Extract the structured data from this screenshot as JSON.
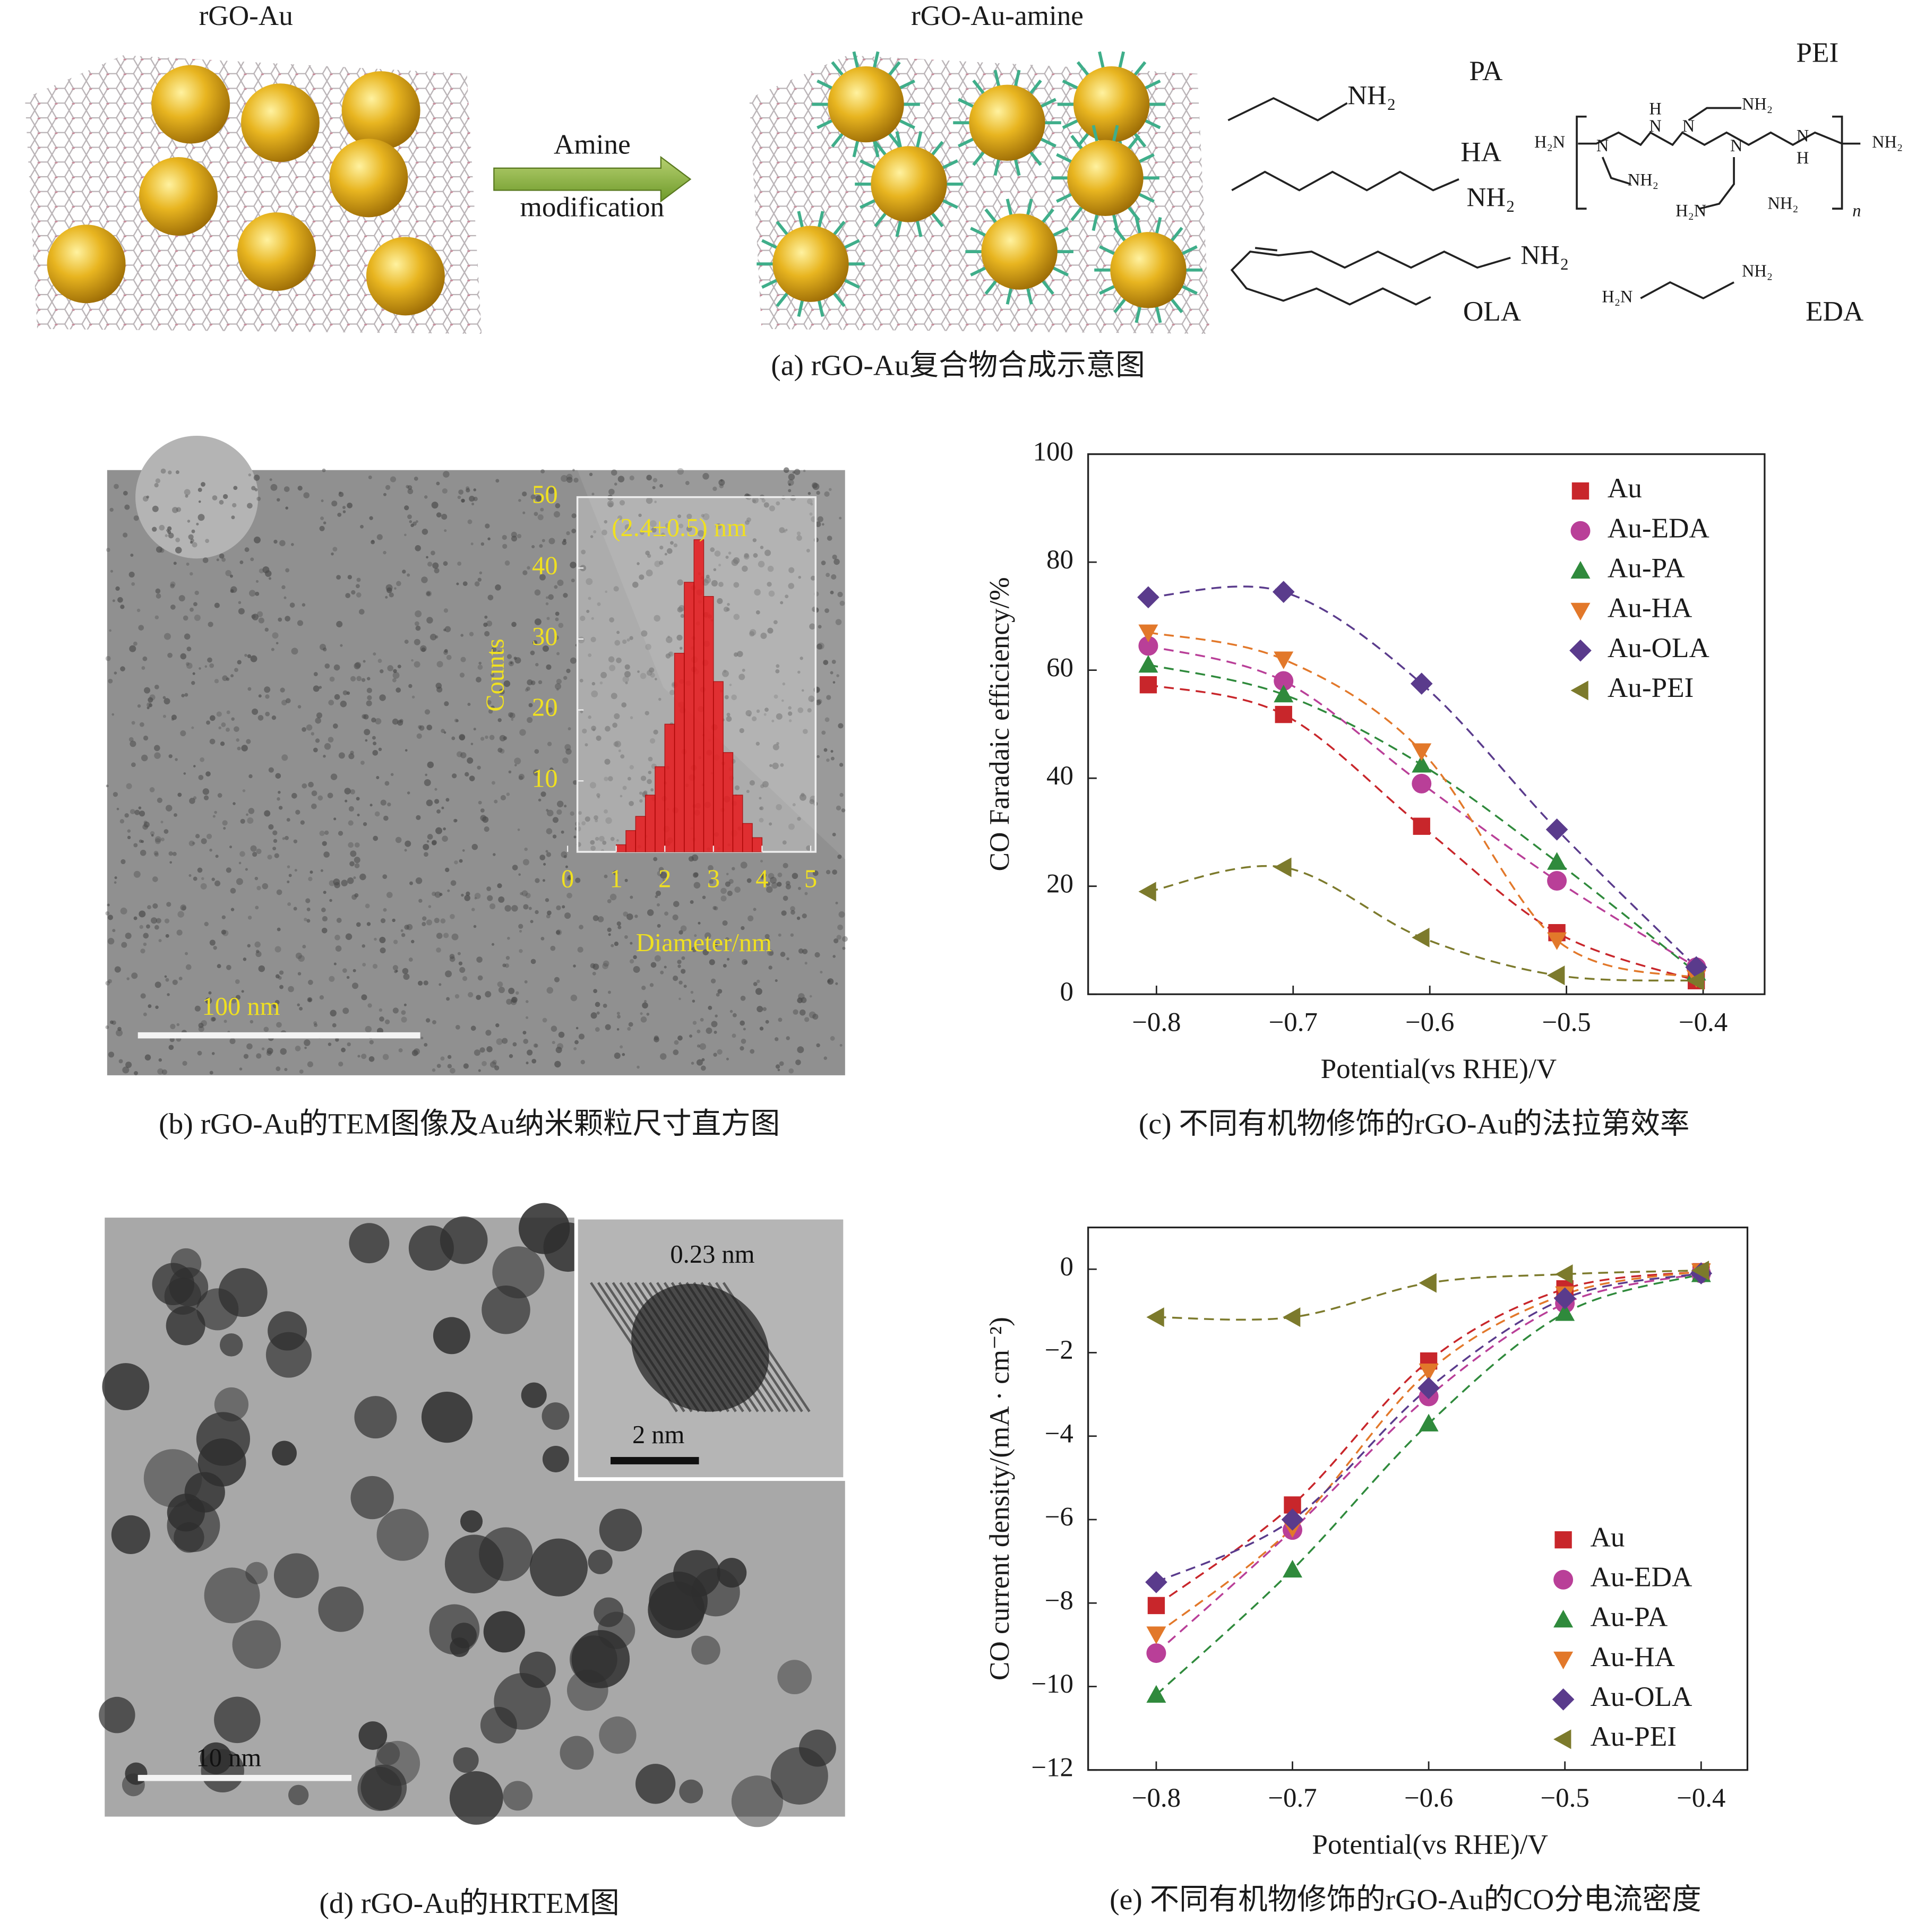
{
  "panel_a": {
    "caption": "(a) rGO-Au复合物合成示意图",
    "left_label": "rGO-Au",
    "right_label": "rGO-Au-amine",
    "arrow_label_1": "Amine",
    "arrow_label_2": "modification",
    "pa_name": "PA",
    "pa_group": "NH₂",
    "ha_name": "HA",
    "ha_group": "NH₂",
    "ola_name": "OLA",
    "ola_group": "NH₂",
    "pei_name": "PEI",
    "pei_labels": [
      "H₂N",
      "N",
      "N",
      "H",
      "N",
      "NH₂",
      "N",
      "N",
      "H",
      "NH₂",
      "NH₂",
      "H₂N",
      "NH₂",
      "n"
    ],
    "eda_name": "EDA",
    "eda_labels": [
      "H₂N",
      "NH₂"
    ]
  },
  "panel_b": {
    "caption": "(b) rGO-Au的TEM图像及Au纳米颗粒尺寸直方图",
    "scale_bar": "100 nm"
  },
  "panel_d": {
    "caption": "(d) rGO-Au的HRTEM图",
    "scale_bar": "10 nm",
    "inset_spacing": "0.23 nm",
    "inset_scale_bar": "2 nm"
  },
  "chart_data": [
    {
      "type": "histogram",
      "title": "(2.4±0.5) nm",
      "xlabel": "Diameter/nm",
      "ylabel": "Counts",
      "color": "#e8191c",
      "bins": [
        1.0,
        1.2,
        1.4,
        1.6,
        1.8,
        2.0,
        2.2,
        2.4,
        2.6,
        2.8,
        3.0,
        3.2,
        3.4,
        3.6,
        3.8,
        4.0
      ],
      "values": [
        1,
        3,
        5,
        8,
        12,
        18,
        28,
        38,
        44,
        36,
        24,
        14,
        8,
        4,
        2
      ],
      "xlim": [
        0,
        5
      ],
      "xticks": [
        0,
        1,
        2,
        3,
        4,
        5
      ],
      "ylim": [
        0,
        50
      ],
      "yticks": [
        10,
        20,
        30,
        40,
        50
      ]
    },
    {
      "type": "line",
      "caption": "(c) 不同有机物修饰的rGO-Au的法拉第效率",
      "xlabel": "Potential(vs RHE)/V",
      "ylabel": "CO Faradaic  efficiency/%",
      "x": [
        -0.806,
        -0.707,
        -0.606,
        -0.507,
        -0.405
      ],
      "xlim": [
        -0.85,
        -0.355
      ],
      "xticks": [
        {
          "value": -0.8,
          "label": "−0.8"
        },
        {
          "value": -0.7,
          "label": "−0.7"
        },
        {
          "value": -0.6,
          "label": "−0.6"
        },
        {
          "value": -0.5,
          "label": "−0.5"
        },
        {
          "value": -0.4,
          "label": "−0.4"
        }
      ],
      "ylim": [
        0,
        100
      ],
      "yticks": [
        0,
        20,
        40,
        60,
        80,
        100
      ],
      "legend": "upper right",
      "series": [
        {
          "name": "Au",
          "color": "#c8262b",
          "marker": "square",
          "values": [
            57.3,
            51.8,
            31.1,
            11.4,
            2.5
          ]
        },
        {
          "name": "Au-EDA",
          "color": "#b93f98",
          "marker": "circle",
          "values": [
            64.5,
            58,
            39,
            21,
            5
          ]
        },
        {
          "name": "Au-PA",
          "color": "#2f8a3c",
          "marker": "triangle-up",
          "values": [
            61,
            55.5,
            42.5,
            24.5,
            4
          ]
        },
        {
          "name": "Au-HA",
          "color": "#e2782a",
          "marker": "triangle-down",
          "values": [
            67,
            62,
            45,
            10,
            3
          ]
        },
        {
          "name": "Au-OLA",
          "color": "#5a3b8c",
          "marker": "diamond",
          "values": [
            73.5,
            74.5,
            57.5,
            30.5,
            5
          ]
        },
        {
          "name": "Au-PEI",
          "color": "#7c7a2c",
          "marker": "triangle-left",
          "values": [
            19,
            23.5,
            10.5,
            3.5,
            2.5
          ]
        }
      ]
    },
    {
      "type": "line",
      "caption": "(e) 不同有机物修饰的rGO-Au的CO分电流密度",
      "xlabel": "Potential(vs RHE)/V",
      "ylabel": "CO current density/(mA · cm⁻²)",
      "x": [
        -0.8,
        -0.7,
        -0.6,
        -0.5,
        -0.4
      ],
      "xlim": [
        -0.85,
        -0.366
      ],
      "xticks": [
        {
          "value": -0.8,
          "label": "−0.8"
        },
        {
          "value": -0.7,
          "label": "−0.7"
        },
        {
          "value": -0.6,
          "label": "−0.6"
        },
        {
          "value": -0.5,
          "label": "−0.5"
        },
        {
          "value": -0.4,
          "label": "−0.4"
        }
      ],
      "ylim": [
        -12,
        1
      ],
      "yticks": [
        0,
        {
          "value": -2,
          "label": "−2"
        },
        {
          "value": -4,
          "label": "−4"
        },
        {
          "value": -6,
          "label": "−6"
        },
        {
          "value": -8,
          "label": "−8"
        },
        {
          "value": -10,
          "label": "−10"
        },
        {
          "value": -12,
          "label": "−12"
        }
      ],
      "legend": "lower right",
      "series": [
        {
          "name": "Au",
          "color": "#c8262b",
          "marker": "square",
          "values": [
            -8.06,
            -5.65,
            -2.2,
            -0.47,
            -0.06
          ]
        },
        {
          "name": "Au-EDA",
          "color": "#b93f98",
          "marker": "circle",
          "values": [
            -9.2,
            -6.25,
            -3.05,
            -0.82,
            -0.1
          ]
        },
        {
          "name": "Au-PA",
          "color": "#2f8a3c",
          "marker": "triangle-up",
          "values": [
            -10.2,
            -7.2,
            -3.7,
            -1.05,
            -0.12
          ]
        },
        {
          "name": "Au-HA",
          "color": "#e2782a",
          "marker": "triangle-down",
          "values": [
            -8.75,
            -6.2,
            -2.45,
            -0.6,
            -0.05
          ]
        },
        {
          "name": "Au-OLA",
          "color": "#5a3b8c",
          "marker": "diamond",
          "values": [
            -7.5,
            -6.0,
            -2.85,
            -0.7,
            -0.1
          ]
        },
        {
          "name": "Au-PEI",
          "color": "#7c7a2c",
          "marker": "triangle-left",
          "values": [
            -1.15,
            -1.15,
            -0.33,
            -0.12,
            -0.03
          ]
        }
      ]
    }
  ]
}
